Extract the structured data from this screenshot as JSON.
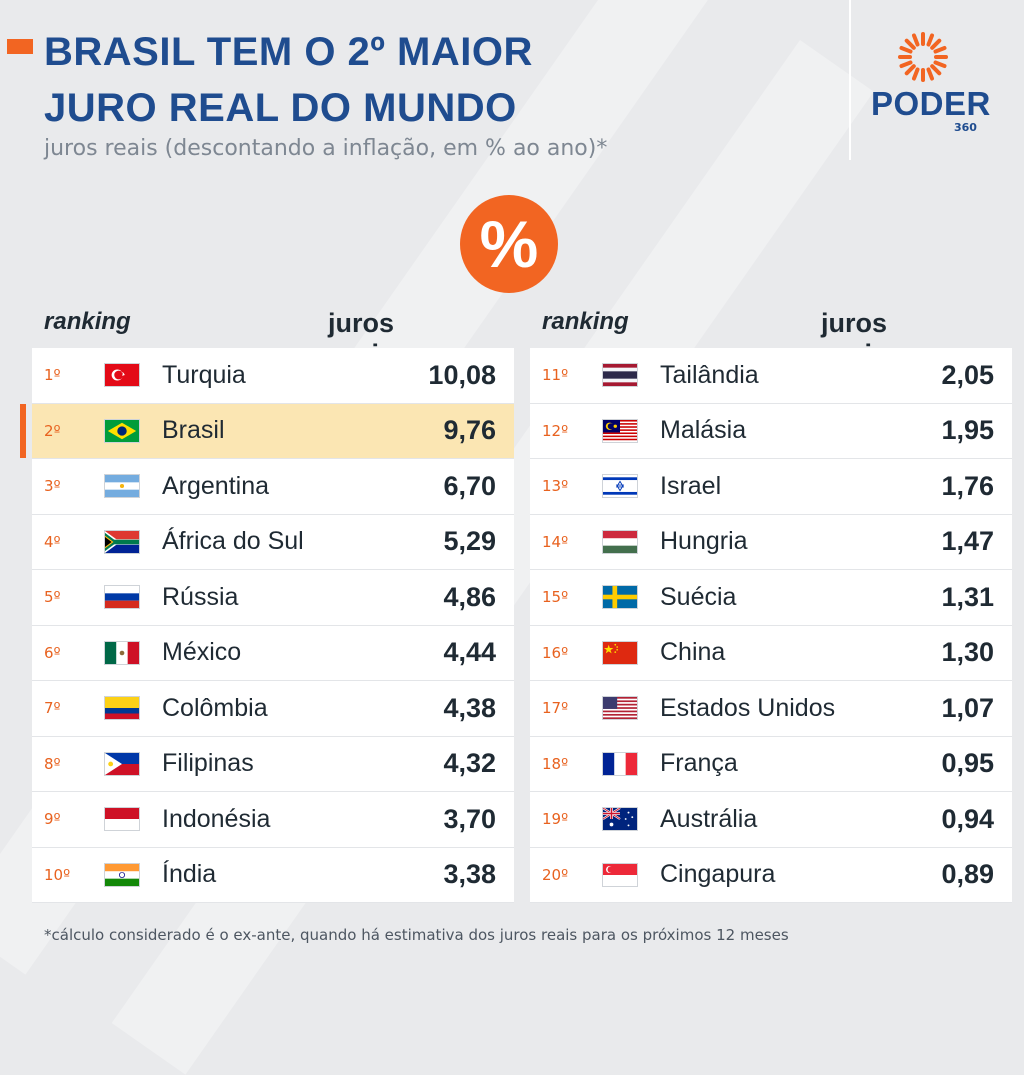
{
  "header": {
    "title_line1": "BRASIL TEM O 2º MAIOR",
    "title_line2": "JURO REAL DO MUNDO",
    "subtitle": "juros reais (descontando a inflação, em % ao ano)*"
  },
  "logo": {
    "name": "PODER",
    "sub": "360"
  },
  "badge": {
    "symbol": "%"
  },
  "columns": {
    "rank_label": "ranking",
    "value_label": "juros reais (%)"
  },
  "colors": {
    "accent": "#f26522",
    "title": "#1f4c8f",
    "highlight": "#fbe6b3"
  },
  "left_rows": [
    {
      "rank": "1º",
      "country": "Turquia",
      "value": "10,08",
      "flag": "turkey-flag"
    },
    {
      "rank": "2º",
      "country": "Brasil",
      "value": "9,76",
      "flag": "brazil-flag",
      "highlight": true
    },
    {
      "rank": "3º",
      "country": "Argentina",
      "value": "6,70",
      "flag": "argentina-flag"
    },
    {
      "rank": "4º",
      "country": "África do Sul",
      "value": "5,29",
      "flag": "south-africa-flag"
    },
    {
      "rank": "5º",
      "country": "Rússia",
      "value": "4,86",
      "flag": "russia-flag"
    },
    {
      "rank": "6º",
      "country": "México",
      "value": "4,44",
      "flag": "mexico-flag"
    },
    {
      "rank": "7º",
      "country": "Colômbia",
      "value": "4,38",
      "flag": "colombia-flag"
    },
    {
      "rank": "8º",
      "country": "Filipinas",
      "value": "4,32",
      "flag": "philippines-flag"
    },
    {
      "rank": "9º",
      "country": "Indonésia",
      "value": "3,70",
      "flag": "indonesia-flag"
    },
    {
      "rank": "10º",
      "country": "Índia",
      "value": "3,38",
      "flag": "india-flag"
    }
  ],
  "right_rows": [
    {
      "rank": "11º",
      "country": "Tailândia",
      "value": "2,05",
      "flag": "thailand-flag"
    },
    {
      "rank": "12º",
      "country": "Malásia",
      "value": "1,95",
      "flag": "malaysia-flag"
    },
    {
      "rank": "13º",
      "country": "Israel",
      "value": "1,76",
      "flag": "israel-flag"
    },
    {
      "rank": "14º",
      "country": "Hungria",
      "value": "1,47",
      "flag": "hungary-flag"
    },
    {
      "rank": "15º",
      "country": "Suécia",
      "value": "1,31",
      "flag": "sweden-flag"
    },
    {
      "rank": "16º",
      "country": "China",
      "value": "1,30",
      "flag": "china-flag"
    },
    {
      "rank": "17º",
      "country": "Estados Unidos",
      "value": "1,07",
      "flag": "usa-flag"
    },
    {
      "rank": "18º",
      "country": "França",
      "value": "0,95",
      "flag": "france-flag"
    },
    {
      "rank": "19º",
      "country": "Austrália",
      "value": "0,94",
      "flag": "australia-flag"
    },
    {
      "rank": "20º",
      "country": "Cingapura",
      "value": "0,89",
      "flag": "singapore-flag"
    }
  ],
  "footnote": "*cálculo considerado é o ex-ante, quando há estimativa dos juros reais para os próximos 12 meses"
}
